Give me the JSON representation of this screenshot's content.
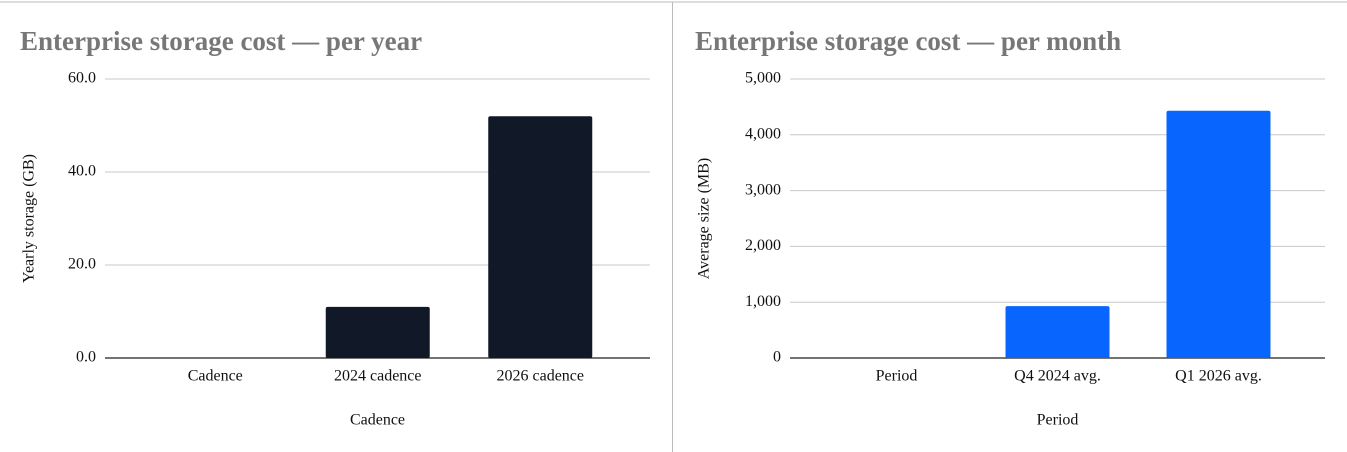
{
  "chart_data": [
    {
      "type": "bar",
      "title": "Enterprise storage cost — per year",
      "x_label": "Cadence",
      "y_label": "Yearly storage (GB)",
      "categories": [
        "Cadence",
        "2024 cadence",
        "2026 cadence"
      ],
      "values": [
        null,
        11,
        52
      ],
      "color": "#111827",
      "ylim": [
        0,
        60
      ],
      "yticks": [
        {
          "value": 0,
          "label": "0.0"
        },
        {
          "value": 20,
          "label": "20.0"
        },
        {
          "value": 40,
          "label": "40.0"
        },
        {
          "value": 60,
          "label": "60.0"
        }
      ],
      "grid": true
    },
    {
      "type": "bar",
      "title": "Enterprise storage cost — per month",
      "x_label": "Period",
      "y_label": "Average size (MB)",
      "categories": [
        "Period",
        "Q4 2024 avg.",
        "Q1 2026 avg."
      ],
      "values": [
        null,
        930,
        4430
      ],
      "color": "#0866ff",
      "ylim": [
        0,
        5000
      ],
      "yticks": [
        0,
        {
          "value": 1000,
          "label": "1,000"
        },
        {
          "value": 2000,
          "label": "2,000"
        },
        {
          "value": 3000,
          "label": "3,000"
        },
        {
          "value": 4000,
          "label": "4,000"
        },
        {
          "value": 5000,
          "label": "5,000"
        }
      ],
      "grid": true
    }
  ]
}
